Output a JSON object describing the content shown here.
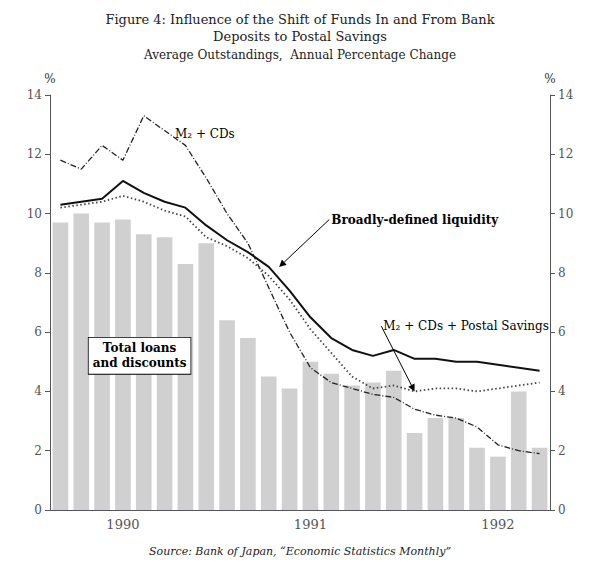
{
  "chart_data": {
    "type": "bar",
    "title": "Figure 4: Influence of the Shift of Funds In and From Bank\nDeposits to Postal Savings",
    "subtitle": "Average Outstandings,  Annual Percentage Change",
    "source": "Source: Bank of Japan, “Economic Statistics Monthly”",
    "ylabel": "%",
    "y2label": "%",
    "categories": [
      null,
      null,
      null,
      "1990",
      null,
      null,
      null,
      null,
      null,
      null,
      null,
      null,
      "1991",
      null,
      null,
      null,
      null,
      null,
      null,
      null,
      null,
      "1992",
      null,
      null
    ],
    "series": [
      {
        "type": "bar",
        "color": "#d0d0d0",
        "values": [
          9.7,
          10.0,
          9.7,
          9.8,
          9.3,
          9.2,
          8.3,
          9.0,
          6.4,
          5.8,
          4.5,
          4.1,
          5.0,
          4.6,
          4.2,
          4.3,
          4.7,
          2.6,
          3.1,
          3.1,
          2.1,
          1.8,
          4.0,
          2.1
        ]
      },
      {
        "type": "line",
        "color": "#222222",
        "line_style": "dashdot",
        "values": [
          11.8,
          11.5,
          12.3,
          11.8,
          13.3,
          12.8,
          12.3,
          11.2,
          10.0,
          9.0,
          7.5,
          6.0,
          4.8,
          4.3,
          4.1,
          3.9,
          3.8,
          3.4,
          3.2,
          3.1,
          2.8,
          2.2,
          2.0,
          1.9
        ]
      },
      {
        "type": "line",
        "color": "#111111",
        "line_style": "solid",
        "values": [
          10.3,
          10.4,
          10.5,
          11.1,
          10.7,
          10.4,
          10.2,
          9.6,
          9.1,
          8.7,
          8.2,
          7.4,
          6.5,
          5.8,
          5.4,
          5.2,
          5.4,
          5.1,
          5.1,
          5.0,
          5.0,
          4.9,
          4.8,
          4.7
        ]
      },
      {
        "type": "line",
        "color": "#444444",
        "line_style": "dotted",
        "values": [
          10.2,
          10.3,
          10.4,
          10.6,
          10.4,
          10.1,
          9.9,
          9.2,
          8.9,
          8.5,
          7.9,
          7.1,
          6.1,
          5.3,
          4.5,
          4.1,
          4.2,
          4.0,
          4.1,
          4.1,
          4.0,
          4.1,
          4.2,
          4.3
        ]
      }
    ],
    "annotations": [
      "Total loans\nand discounts",
      "M₂ + CDs",
      "Broadly-defined liquidity",
      "M₂ + CDs + Postal Savings"
    ],
    "ylim": [
      0,
      14
    ],
    "yticks": [
      0,
      2,
      4,
      6,
      8,
      10,
      12,
      14
    ],
    "y2lim": [
      0,
      14
    ],
    "y2ticks": [
      0,
      2,
      4,
      6,
      8,
      10,
      12,
      14
    ],
    "grid": false
  }
}
